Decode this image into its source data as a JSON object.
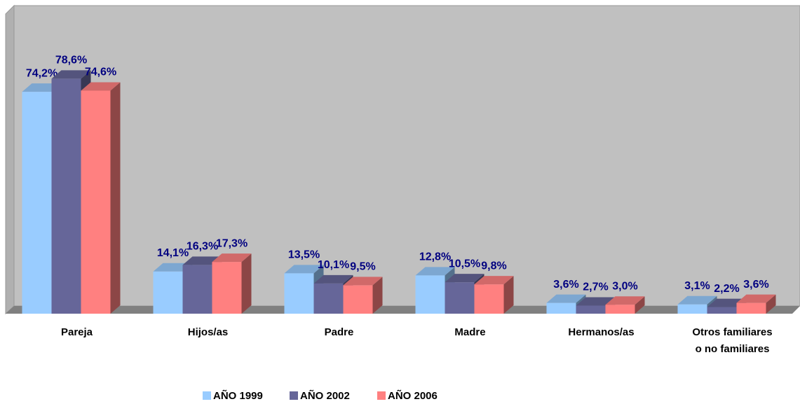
{
  "chart_data": {
    "type": "bar3d",
    "categories": [
      "Pareja",
      "Hijos/as",
      "Padre",
      "Madre",
      "Hermanos/as",
      "Otros familiares\no no familiares"
    ],
    "series": [
      {
        "name": "AÑO 1999",
        "color": "#99ccff",
        "values": [
          74.2,
          14.1,
          13.5,
          12.8,
          3.6,
          3.1
        ],
        "value_labels": [
          "74,2%",
          "14,1%",
          "13,5%",
          "12,8%",
          "3,6%",
          "3,1%"
        ]
      },
      {
        "name": "AÑO 2002",
        "color": "#666699",
        "values": [
          78.6,
          16.3,
          10.1,
          10.5,
          2.7,
          2.2
        ],
        "value_labels": [
          "78,6%",
          "16,3%",
          "10,1%",
          "10,5%",
          "2,7%",
          "2,2%"
        ]
      },
      {
        "name": "AÑO 2006",
        "color": "#ff8080",
        "values": [
          74.6,
          17.3,
          9.5,
          9.8,
          3.0,
          3.6
        ],
        "value_labels": [
          "74,6%",
          "17,3%",
          "9,5%",
          "9,8%",
          "3,0%",
          "3,6%"
        ]
      }
    ],
    "ylim": [
      0,
      100
    ],
    "legend": "bottom"
  }
}
